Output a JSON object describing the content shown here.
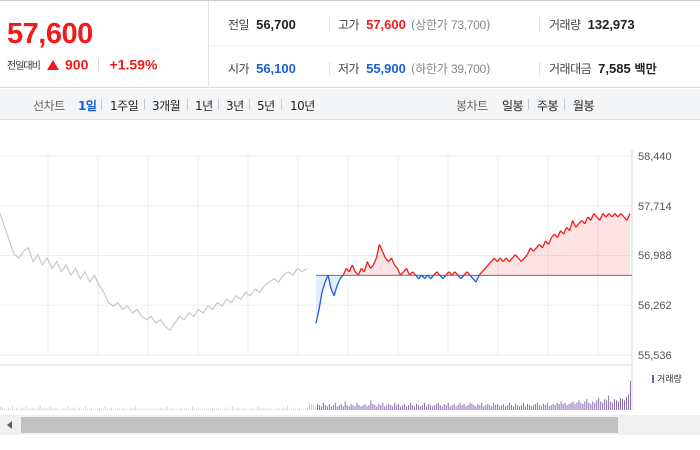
{
  "summary": {
    "price": "57,600",
    "change_label": "전일대비",
    "change_amount": "900",
    "change_percent": "+1.59%",
    "colors": {
      "up": "#f01b1b",
      "down": "#1a5fd7"
    },
    "prev_close": {
      "label": "전일",
      "value": "56,700"
    },
    "open": {
      "label": "시가",
      "value": "56,100"
    },
    "high": {
      "label": "고가",
      "value": "57,600",
      "limit_label": "상한가",
      "limit_value": "73,700"
    },
    "low": {
      "label": "저가",
      "value": "55,900",
      "limit_label": "하한가",
      "limit_value": "39,700"
    },
    "volume": {
      "label": "거래량",
      "value": "132,973"
    },
    "trade_value": {
      "label": "거래대금",
      "value": "7,585",
      "unit": "백만"
    }
  },
  "toolbar": {
    "line_chart_label": "선차트",
    "periods": [
      "1일",
      "1주일",
      "3개월",
      "1년",
      "3년",
      "5년",
      "10년"
    ],
    "active_period": "1일",
    "candle_chart_label": "봉차트",
    "candle_periods": [
      "일봉",
      "주봉",
      "월봉"
    ]
  },
  "chart_data": {
    "type": "line",
    "title": "",
    "xlabel": "",
    "ylabel": "",
    "y_ticks": [
      "58,440",
      "57,714",
      "56,988",
      "56,262",
      "55,536"
    ],
    "ylim": [
      55536,
      58440
    ],
    "reference_line": 56700,
    "grid": true,
    "series": [
      {
        "name": "",
        "color": "#c8c8c8",
        "values": [
          57600,
          57400,
          57200,
          57000,
          56950,
          57050,
          57100,
          56900,
          57000,
          56850,
          56950,
          56800,
          56900,
          56750,
          56850,
          56700,
          56800,
          56650,
          56750,
          56600,
          56700,
          56550,
          56450,
          56300,
          56250,
          56300,
          56200,
          56250,
          56150,
          56200,
          56100,
          56050,
          56100,
          56000,
          56050,
          55950,
          55900,
          56000,
          56100,
          56050,
          56150,
          56100,
          56200,
          56150,
          56250,
          56200,
          56300,
          56250,
          56350,
          56300,
          56400,
          56350,
          56450,
          56400,
          56500,
          56450,
          56550,
          56600,
          56650,
          56600,
          56700,
          56750,
          56700,
          56800,
          56750,
          56800
        ]
      },
      {
        "name": "",
        "color": "#f01b1b",
        "below_color": "#1a5fd7",
        "values": [
          56000,
          56200,
          56450,
          56600,
          56700,
          56500,
          56400,
          56550,
          56650,
          56700,
          56800,
          56750,
          56850,
          56750,
          56700,
          56800,
          56750,
          56900,
          56800,
          56850,
          56950,
          57150,
          57050,
          56950,
          56900,
          56950,
          56850,
          56800,
          56700,
          56750,
          56800,
          56700,
          56750,
          56700,
          56650,
          56700,
          56650,
          56700,
          56650,
          56700,
          56750,
          56700,
          56650,
          56700,
          56750,
          56700,
          56750,
          56700,
          56650,
          56700,
          56750,
          56700,
          56650,
          56600,
          56700,
          56750,
          56800,
          56850,
          56900,
          56950,
          56900,
          56950,
          56900,
          56950,
          56900,
          56950,
          57000,
          56950,
          56900,
          56950,
          57000,
          57100,
          57050,
          57100,
          57150,
          57100,
          57200,
          57150,
          57250,
          57300,
          57250,
          57350,
          57300,
          57400,
          57350,
          57500,
          57400,
          57450,
          57500,
          57450,
          57550,
          57500,
          57600,
          57550,
          57500,
          57600,
          57550,
          57600,
          57550,
          57600,
          57550,
          57600,
          57550,
          57500,
          57600
        ]
      }
    ],
    "volume_legend": "거래량",
    "volume_color": "#7b5ea7",
    "volume": [
      3,
      2,
      1,
      1,
      2,
      1,
      3,
      1,
      2,
      1,
      1,
      2,
      1,
      3,
      1,
      1,
      2,
      1,
      1,
      2,
      4,
      1,
      2,
      1,
      1,
      3,
      1,
      1,
      2,
      1,
      1,
      1,
      2,
      1,
      3,
      1,
      1,
      2,
      1,
      1,
      2,
      1,
      1,
      3,
      1,
      1,
      2,
      1,
      1,
      1,
      2,
      1,
      1,
      3,
      1,
      1,
      2,
      1,
      1,
      2,
      1,
      1,
      2,
      1,
      1,
      1,
      2,
      1,
      3,
      1,
      1,
      2,
      1,
      1,
      2,
      1,
      1,
      1,
      2,
      1,
      1,
      2,
      1,
      1,
      3,
      1,
      1,
      2,
      1,
      1,
      1,
      2,
      1,
      1,
      2,
      1,
      1,
      3,
      1,
      1,
      2,
      1,
      1,
      1,
      2,
      1,
      1,
      2,
      1,
      1,
      2,
      1,
      1,
      1,
      2,
      1,
      1,
      3,
      1,
      1,
      2,
      1,
      1,
      2,
      1,
      1,
      1,
      2,
      1,
      1,
      3,
      1,
      1,
      2,
      1,
      1,
      2,
      1,
      1,
      1,
      2,
      1,
      1,
      2,
      1,
      3,
      1,
      1,
      2,
      1,
      1,
      2,
      1,
      1,
      1,
      2,
      6,
      5,
      4,
      3,
      5,
      4,
      3,
      6,
      4,
      3,
      5,
      3,
      4,
      6,
      3,
      4,
      5,
      3,
      7,
      4,
      3,
      5,
      4,
      3,
      6,
      4,
      3,
      4,
      5,
      3,
      4,
      8,
      5,
      4,
      3,
      5,
      4,
      6,
      3,
      4,
      5,
      4,
      3,
      6,
      4,
      5,
      3,
      4,
      5,
      3,
      4,
      6,
      4,
      3,
      5,
      4,
      3,
      4,
      6,
      3,
      5,
      4,
      3,
      4,
      5,
      6,
      4,
      3,
      5,
      4,
      6,
      3,
      4,
      5,
      3,
      4,
      6,
      4,
      5,
      3,
      4,
      6,
      5,
      4,
      3,
      5,
      4,
      6,
      3,
      4,
      5,
      4,
      3,
      6,
      4,
      5,
      3,
      4,
      5,
      3,
      4,
      6,
      4,
      3,
      5,
      4,
      3,
      4,
      6,
      3,
      5,
      4,
      3,
      4,
      5,
      6,
      4,
      3,
      5,
      4,
      6,
      3,
      4,
      5,
      4,
      6,
      5,
      7,
      5,
      6,
      4,
      5,
      6,
      7,
      5,
      6,
      8,
      6,
      5,
      7,
      9,
      6,
      5,
      7,
      6,
      8,
      10,
      7,
      6,
      9,
      8,
      12,
      7,
      6,
      9,
      8,
      7,
      10,
      9,
      8,
      11,
      13,
      24
    ]
  }
}
